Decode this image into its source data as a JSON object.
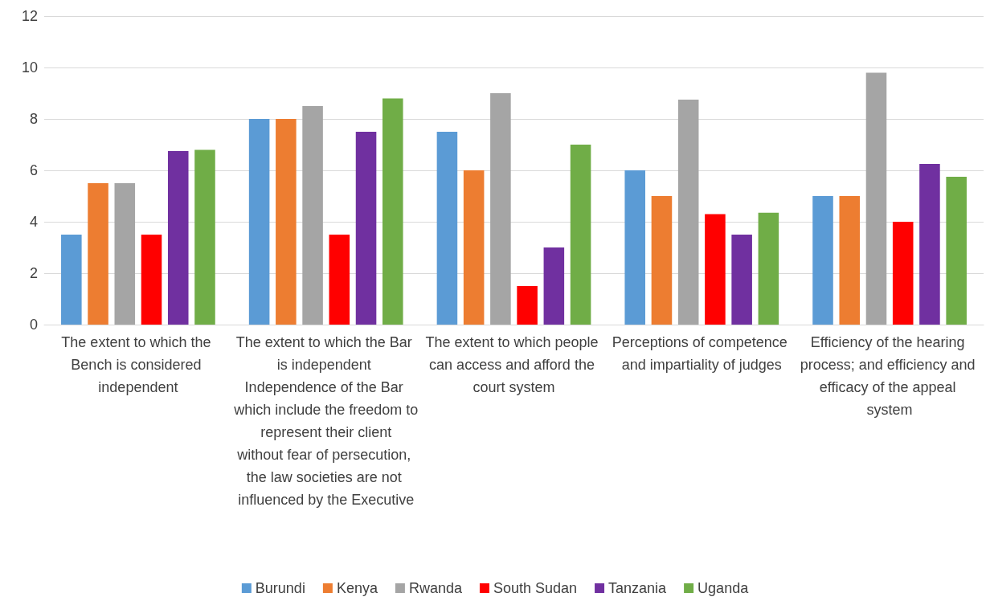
{
  "chart_data": {
    "type": "bar",
    "categories": [
      "The extent to which the Bench is considered independent",
      "The extent to which the Bar is independent Independence of the Bar which include the freedom to represent their client without fear of persecution, the law societies are not influenced by the Executive",
      "The extent to which people can access and afford the court system",
      "Perceptions of competence and impartiality of judges",
      "Efficiency of the hearing process; and efficiency and efficacy of the appeal system"
    ],
    "series": [
      {
        "name": "Burundi",
        "color": "#5b9bd5",
        "values": [
          3.5,
          8,
          7.5,
          6,
          5
        ]
      },
      {
        "name": "Kenya",
        "color": "#ed7d31",
        "values": [
          5.5,
          8,
          6,
          5,
          5
        ]
      },
      {
        "name": "Rwanda",
        "color": "#a5a5a5",
        "values": [
          5.5,
          8.5,
          9,
          8.75,
          9.8
        ]
      },
      {
        "name": "South Sudan",
        "color": "#ff0000",
        "values": [
          3.5,
          3.5,
          1.5,
          4.3,
          4
        ]
      },
      {
        "name": "Tanzania",
        "color": "#7030a0",
        "values": [
          6.75,
          7.5,
          3,
          3.5,
          6.25
        ]
      },
      {
        "name": "Uganda",
        "color": "#70ad47",
        "values": [
          6.8,
          8.8,
          7,
          4.35,
          5.75
        ]
      }
    ],
    "ylim": [
      0,
      12
    ],
    "yticks": [
      0,
      2,
      4,
      6,
      8,
      10,
      12
    ],
    "grid": "y",
    "legend": "bottom"
  }
}
